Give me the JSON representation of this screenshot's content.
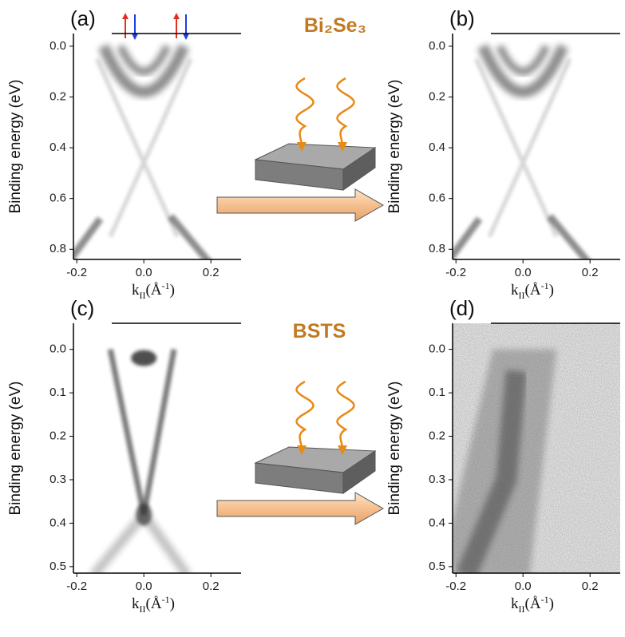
{
  "materials": [
    "Bi₂Se₃",
    "BSTS"
  ],
  "panels": [
    {
      "label": "(a)",
      "ylabel": "Binding energy (eV)",
      "xlabel": [
        "k",
        "II",
        "(Å",
        "-1",
        ")"
      ],
      "xlim": [
        -0.21,
        0.29
      ],
      "xticks": [
        {
          "value": -0.2,
          "label": "-0.2"
        },
        {
          "value": 0,
          "label": "0.0"
        },
        0.2
      ],
      "ylim": [
        -0.05,
        0.84
      ],
      "yticks": [
        {
          "value": 0,
          "label": "0.0"
        },
        0.2,
        0.4,
        0.6,
        0.8
      ]
    },
    {
      "label": "(b)",
      "ylabel": "Binding energy (eV)",
      "xlabel": [
        "k",
        "II",
        "(Å",
        "-1",
        ")"
      ],
      "xlim": [
        -0.21,
        0.29
      ],
      "xticks": [
        {
          "value": -0.2,
          "label": "-0.2"
        },
        {
          "value": 0,
          "label": "0.0"
        },
        0.2
      ],
      "ylim": [
        -0.05,
        0.84
      ],
      "yticks": [
        {
          "value": 0,
          "label": "0.0"
        },
        0.2,
        0.4,
        0.6,
        0.8
      ]
    },
    {
      "label": "(c)",
      "ylabel": "Binding energy (eV)",
      "xlabel": [
        "k",
        "II",
        "(Å",
        "-1",
        ")"
      ],
      "xlim": [
        -0.21,
        0.29
      ],
      "xticks": [
        {
          "value": -0.2,
          "label": "-0.2"
        },
        {
          "value": 0,
          "label": "0.0"
        },
        0.2
      ],
      "ylim": [
        -0.06,
        0.515
      ],
      "yticks": [
        {
          "value": 0,
          "label": "0.0"
        },
        0.1,
        0.2,
        0.3,
        0.4,
        0.5
      ]
    },
    {
      "label": "(d)",
      "ylabel": "Binding energy (eV)",
      "xlabel": [
        "k",
        "II",
        "(Å",
        "-1",
        ")"
      ],
      "xlim": [
        -0.21,
        0.29
      ],
      "xticks": [
        {
          "value": -0.2,
          "label": "-0.2"
        },
        {
          "value": 0,
          "label": "0.0"
        },
        0.2
      ],
      "ylim": [
        -0.06,
        0.515
      ],
      "yticks": [
        {
          "value": 0,
          "label": "0.0"
        },
        0.1,
        0.2,
        0.3,
        0.4,
        0.5
      ]
    }
  ]
}
